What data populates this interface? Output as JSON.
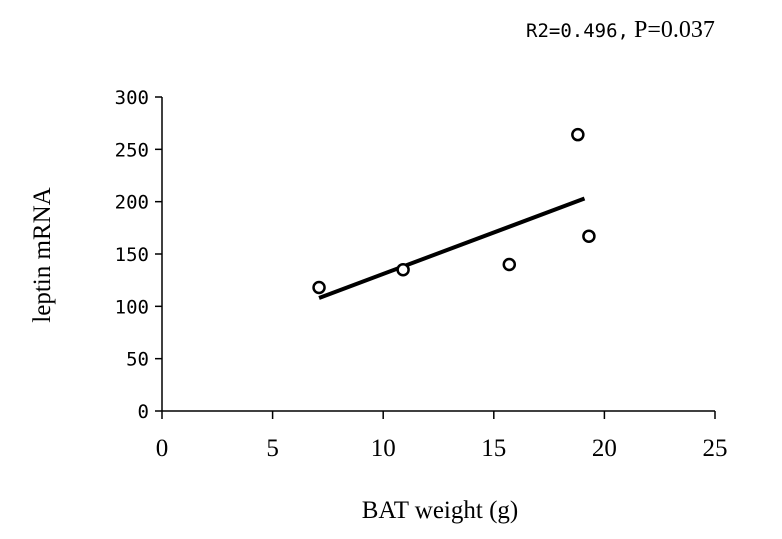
{
  "chart_data": {
    "type": "scatter",
    "annotation": {
      "stat_label": "R2=0.496,",
      "p_label": "P=0.037"
    },
    "xlabel": "BAT weight (g)",
    "ylabel": "leptin mRNA",
    "xlim": [
      0,
      25
    ],
    "ylim": [
      0,
      300
    ],
    "x_ticks": [
      0,
      5,
      10,
      15,
      20,
      25
    ],
    "y_ticks": [
      0,
      50,
      100,
      150,
      200,
      250,
      300
    ],
    "grid": false,
    "points": [
      {
        "x": 7.1,
        "y": 118
      },
      {
        "x": 10.9,
        "y": 135
      },
      {
        "x": 15.7,
        "y": 140
      },
      {
        "x": 18.8,
        "y": 264
      },
      {
        "x": 19.3,
        "y": 167
      }
    ],
    "trendline": {
      "x": [
        7.1,
        19.1
      ],
      "y": [
        108,
        203
      ]
    }
  }
}
